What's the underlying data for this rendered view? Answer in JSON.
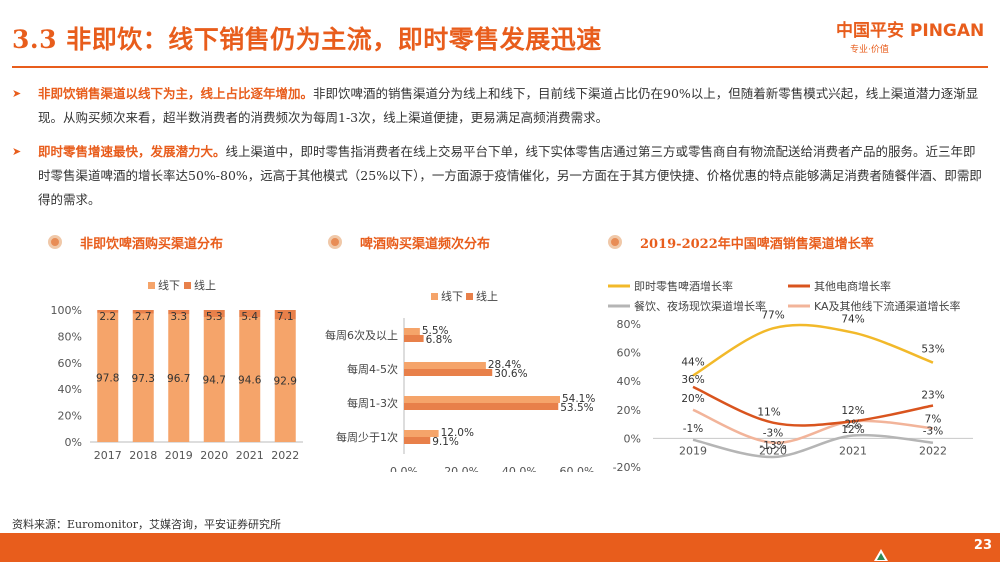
{
  "header": {
    "title": "3.3 非即饮：线下销售仍为主流，即时零售发展迅速",
    "logo_cn": "中国平安",
    "logo_en": "PINGAN",
    "logo_slogan": "专业·价值"
  },
  "paragraphs": [
    {
      "highlight": "非即饮销售渠道以线下为主，线上占比逐年增加。",
      "body": "非即饮啤酒的销售渠道分为线上和线下，目前线下渠道占比仍在90%以上，但随着新零售模式兴起，线上渠道潜力逐渐显现。从购买频次来看，超半数消费者的消费频次为每周1-3次，线上渠道便捷，更易满足高频消费需求。"
    },
    {
      "highlight": "即时零售增速最快，发展潜力大。",
      "body": "线上渠道中，即时零售指消费者在线上交易平台下单，线下实体零售店通过第三方或零售商自有物流配送给消费者产品的服务。近三年即时零售渠道啤酒的增长率达50%-80%，远高于其他模式（25%以下），一方面源于疫情催化，另一方面在于其方便快捷、价格优惠的特点能够满足消费者随餐伴酒、即需即得的需求。"
    }
  ],
  "chart_titles": [
    "非即饮啤酒购买渠道分布",
    "啤酒购买渠道频次分布",
    "2019-2022年中国啤酒销售渠道增长率"
  ],
  "source": "资料来源：Euromonitor，艾媒咨询，平安证券研究所",
  "page_number": "23",
  "colors": {
    "accent": "#e85d1c",
    "bar_offline": "#f5a46a",
    "bar_online": "#e8804a"
  },
  "chart_data": [
    {
      "type": "bar",
      "stacked": true,
      "categories": [
        "2017",
        "2018",
        "2019",
        "2020",
        "2021",
        "2022"
      ],
      "series": [
        {
          "name": "线下",
          "values": [
            97.8,
            97.3,
            96.7,
            94.7,
            94.6,
            92.9
          ],
          "labels": [
            "97.8",
            "97.3",
            "96.7",
            "94.7",
            "94.6",
            "92.9"
          ]
        },
        {
          "name": "线上",
          "values": [
            2.2,
            2.7,
            3.3,
            5.3,
            5.4,
            7.1
          ],
          "labels": [
            "2.2",
            "2.7",
            "3.3",
            "5.3",
            "5.4",
            "7.1"
          ]
        }
      ],
      "yticks": [
        "0%",
        "20%",
        "40%",
        "60%",
        "80%",
        "100%"
      ],
      "ylim": [
        0,
        100
      ],
      "legend": [
        "线下",
        "线上"
      ]
    },
    {
      "type": "bar",
      "orientation": "horizontal",
      "categories": [
        "每周6次及以上",
        "每周4-5次",
        "每周1-3次",
        "每周少于1次"
      ],
      "series": [
        {
          "name": "线下",
          "values": [
            5.5,
            28.4,
            54.1,
            12.0
          ],
          "labels": [
            "5.5%",
            "28.4%",
            "54.1%",
            "12.0%"
          ]
        },
        {
          "name": "线上",
          "values": [
            6.8,
            30.6,
            53.5,
            9.1
          ],
          "labels": [
            "6.8%",
            "30.6%",
            "53.5%",
            "9.1%"
          ]
        }
      ],
      "xticks": [
        "0.0%",
        "20.0%",
        "40.0%",
        "60.0%"
      ],
      "xlim": [
        0,
        60
      ],
      "legend": [
        "线下",
        "线上"
      ]
    },
    {
      "type": "line",
      "x": [
        "2019",
        "2020",
        "2021",
        "2022"
      ],
      "series": [
        {
          "name": "即时零售啤酒增长率",
          "color": "#f2b92a",
          "values": [
            44,
            77,
            74,
            53
          ],
          "labels": [
            "44%",
            "77%",
            "74%",
            "53%"
          ]
        },
        {
          "name": "其他电商增长率",
          "color": "#d9541e",
          "values": [
            36,
            11,
            12,
            23
          ],
          "labels": [
            "36%",
            "11%",
            "12%",
            "23%"
          ]
        },
        {
          "name": "餐饮、夜场现饮渠道增长率",
          "color": "#b5b5b5",
          "values": [
            -1,
            -13,
            2,
            -3
          ],
          "labels": [
            "-1%",
            "-13%",
            "2%",
            "-3%"
          ]
        },
        {
          "name": "KA及其他线下流通渠道增长率",
          "color": "#f2b49a",
          "values": [
            20,
            -3,
            12,
            7
          ],
          "labels": [
            "20%",
            "-3%",
            "12%",
            "7%"
          ]
        }
      ],
      "yticks": [
        "-20%",
        "0%",
        "20%",
        "40%",
        "60%",
        "80%"
      ],
      "ylim": [
        -20,
        80
      ]
    }
  ]
}
